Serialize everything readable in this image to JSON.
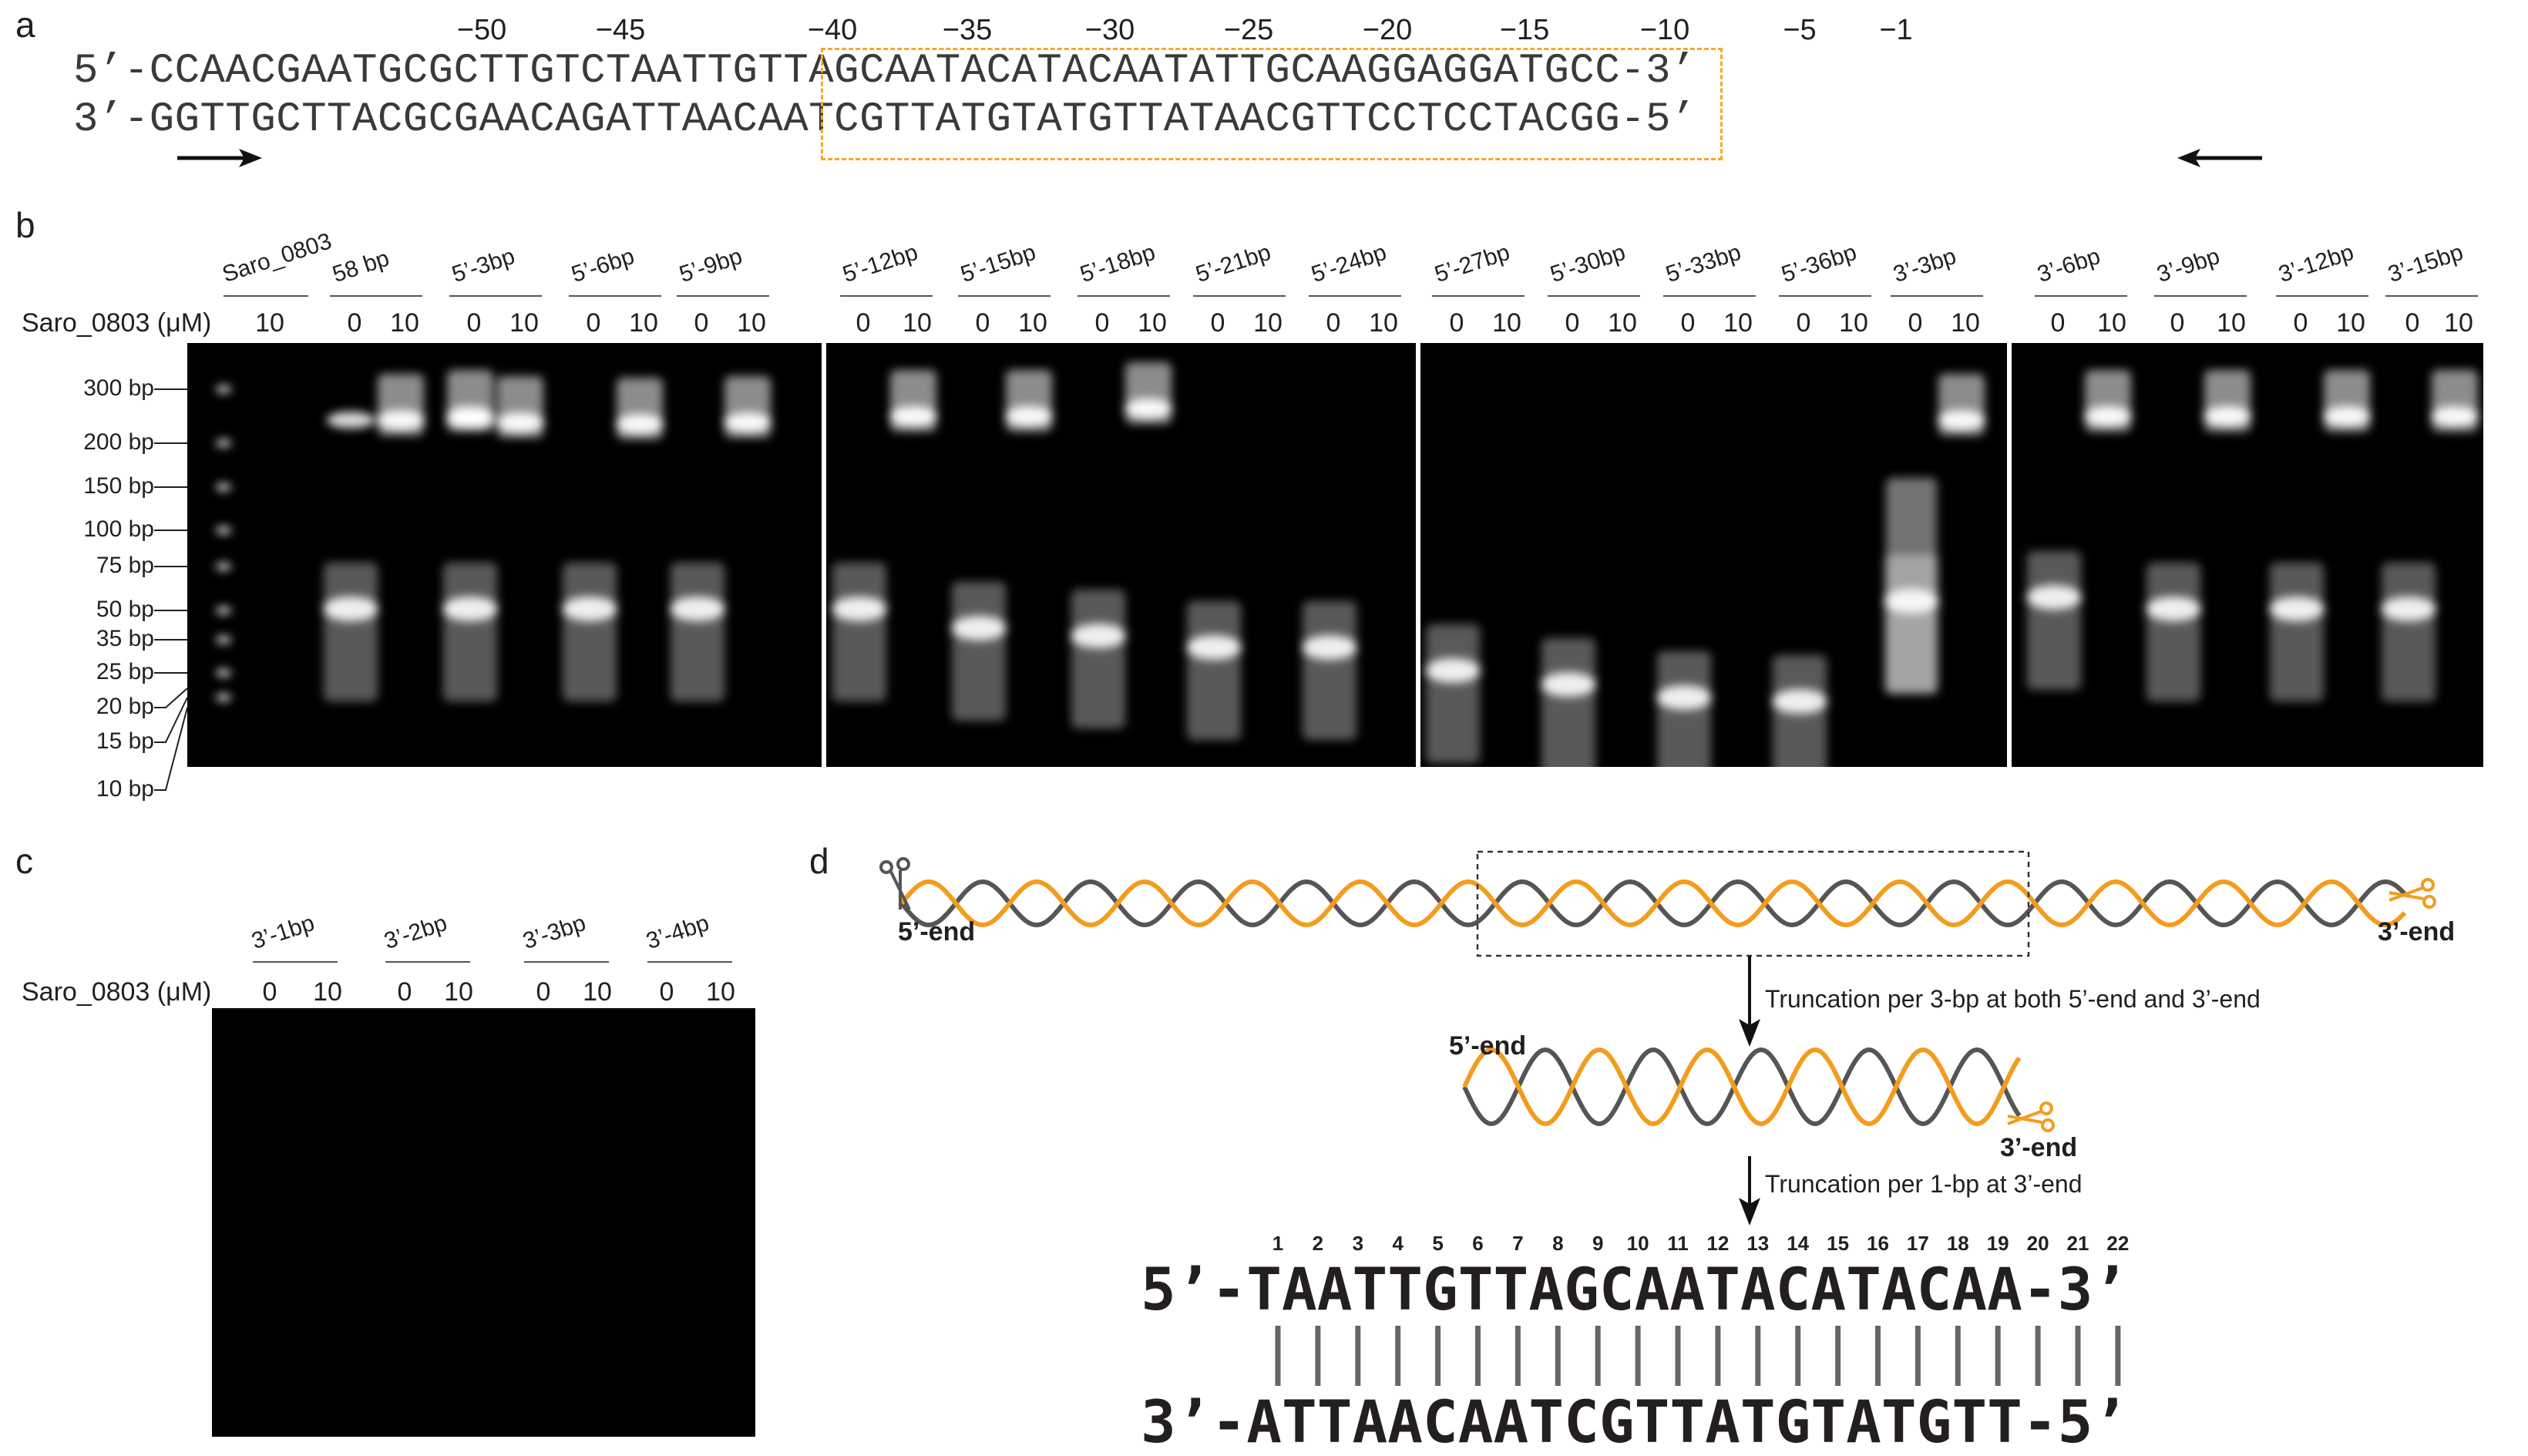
{
  "figure": {
    "panels": [
      "a",
      "b",
      "c",
      "d"
    ]
  },
  "panel_a": {
    "positions": [
      "−50",
      "−45",
      "−40",
      "−35",
      "−30",
      "−25",
      "−20",
      "−15",
      "−10",
      "−5",
      "−1"
    ],
    "top_prefix": "5’-",
    "top_seq_before": "CCAACGAATGCGCTTGTC",
    "top_seq_boxed": "TAATTGTTAGCAATACATACAATAT",
    "top_seq_after": "TGCAAGGAGGATGCC",
    "top_suffix": "-3’",
    "bottom_prefix": "3’-",
    "bottom_seq_before": "GGTTGCTTACGCGAACAG",
    "bottom_seq_boxed": "ATTAACAATCGTTATGTATGTTATA",
    "bottom_seq_after": "ACGTTCCTCCTACGG",
    "bottom_suffix": "-5’",
    "box_color": "#f7a823"
  },
  "panel_b": {
    "conc_label": "Saro_0803 (μM)",
    "ladder": [
      "300 bp",
      "200 bp",
      "150 bp",
      "100 bp",
      "75 bp",
      "50 bp",
      "35 bp",
      "25 bp",
      "20 bp",
      "15 bp",
      "10 bp"
    ],
    "groups": [
      {
        "name": "Saro_0803",
        "concs": [
          "10"
        ]
      },
      {
        "name": "58 bp",
        "concs": [
          "0",
          "10"
        ]
      },
      {
        "name": "5’-3bp",
        "concs": [
          "0",
          "10"
        ]
      },
      {
        "name": "5’-6bp",
        "concs": [
          "0",
          "10"
        ]
      },
      {
        "name": "5’-9bp",
        "concs": [
          "0",
          "10"
        ]
      },
      {
        "name": "5’-12bp",
        "concs": [
          "0",
          "10"
        ]
      },
      {
        "name": "5’-15bp",
        "concs": [
          "0",
          "10"
        ]
      },
      {
        "name": "5’-18bp",
        "concs": [
          "0",
          "10"
        ]
      },
      {
        "name": "5’-21bp",
        "concs": [
          "0",
          "10"
        ]
      },
      {
        "name": "5’-24bp",
        "concs": [
          "0",
          "10"
        ]
      },
      {
        "name": "5’-27bp",
        "concs": [
          "0",
          "10"
        ]
      },
      {
        "name": "5’-30bp",
        "concs": [
          "0",
          "10"
        ]
      },
      {
        "name": "5’-33bp",
        "concs": [
          "0",
          "10"
        ]
      },
      {
        "name": "5’-36bp",
        "concs": [
          "0",
          "10"
        ]
      },
      {
        "name": "3’-3bp",
        "concs": [
          "0",
          "10"
        ]
      },
      {
        "name": "3’-6bp",
        "concs": [
          "0",
          "10"
        ]
      },
      {
        "name": "3’-9bp",
        "concs": [
          "0",
          "10"
        ]
      },
      {
        "name": "3’-12bp",
        "concs": [
          "0",
          "10"
        ]
      },
      {
        "name": "3’-15bp",
        "concs": [
          "0",
          "10"
        ]
      }
    ]
  },
  "panel_c": {
    "conc_label": "Saro_0803 (μM)",
    "groups": [
      {
        "name": "3’-1bp",
        "concs": [
          "0",
          "10"
        ]
      },
      {
        "name": "3’-2bp",
        "concs": [
          "0",
          "10"
        ]
      },
      {
        "name": "3’-3bp",
        "concs": [
          "0",
          "10"
        ]
      },
      {
        "name": "3’-4bp",
        "concs": [
          "0",
          "10"
        ]
      }
    ]
  },
  "panel_d": {
    "end5": "5’-end",
    "end3": "3’-end",
    "step1": "Truncation per 3-bp at both 5’-end and 3’-end",
    "step2": "Truncation per 1-bp at 3’-end",
    "numbers": [
      "1",
      "2",
      "3",
      "4",
      "5",
      "6",
      "7",
      "8",
      "9",
      "10",
      "11",
      "12",
      "13",
      "14",
      "15",
      "16",
      "17",
      "18",
      "19",
      "20",
      "21",
      "22"
    ],
    "top_seq": "5’-TAATTGTTAGCAATACATACAA-3’",
    "bottom_seq": "3’-ATTAACAATCGTTATGTATGTT-5’",
    "strand_colors": {
      "orange": "#f39c1e",
      "gray": "#555555"
    }
  }
}
